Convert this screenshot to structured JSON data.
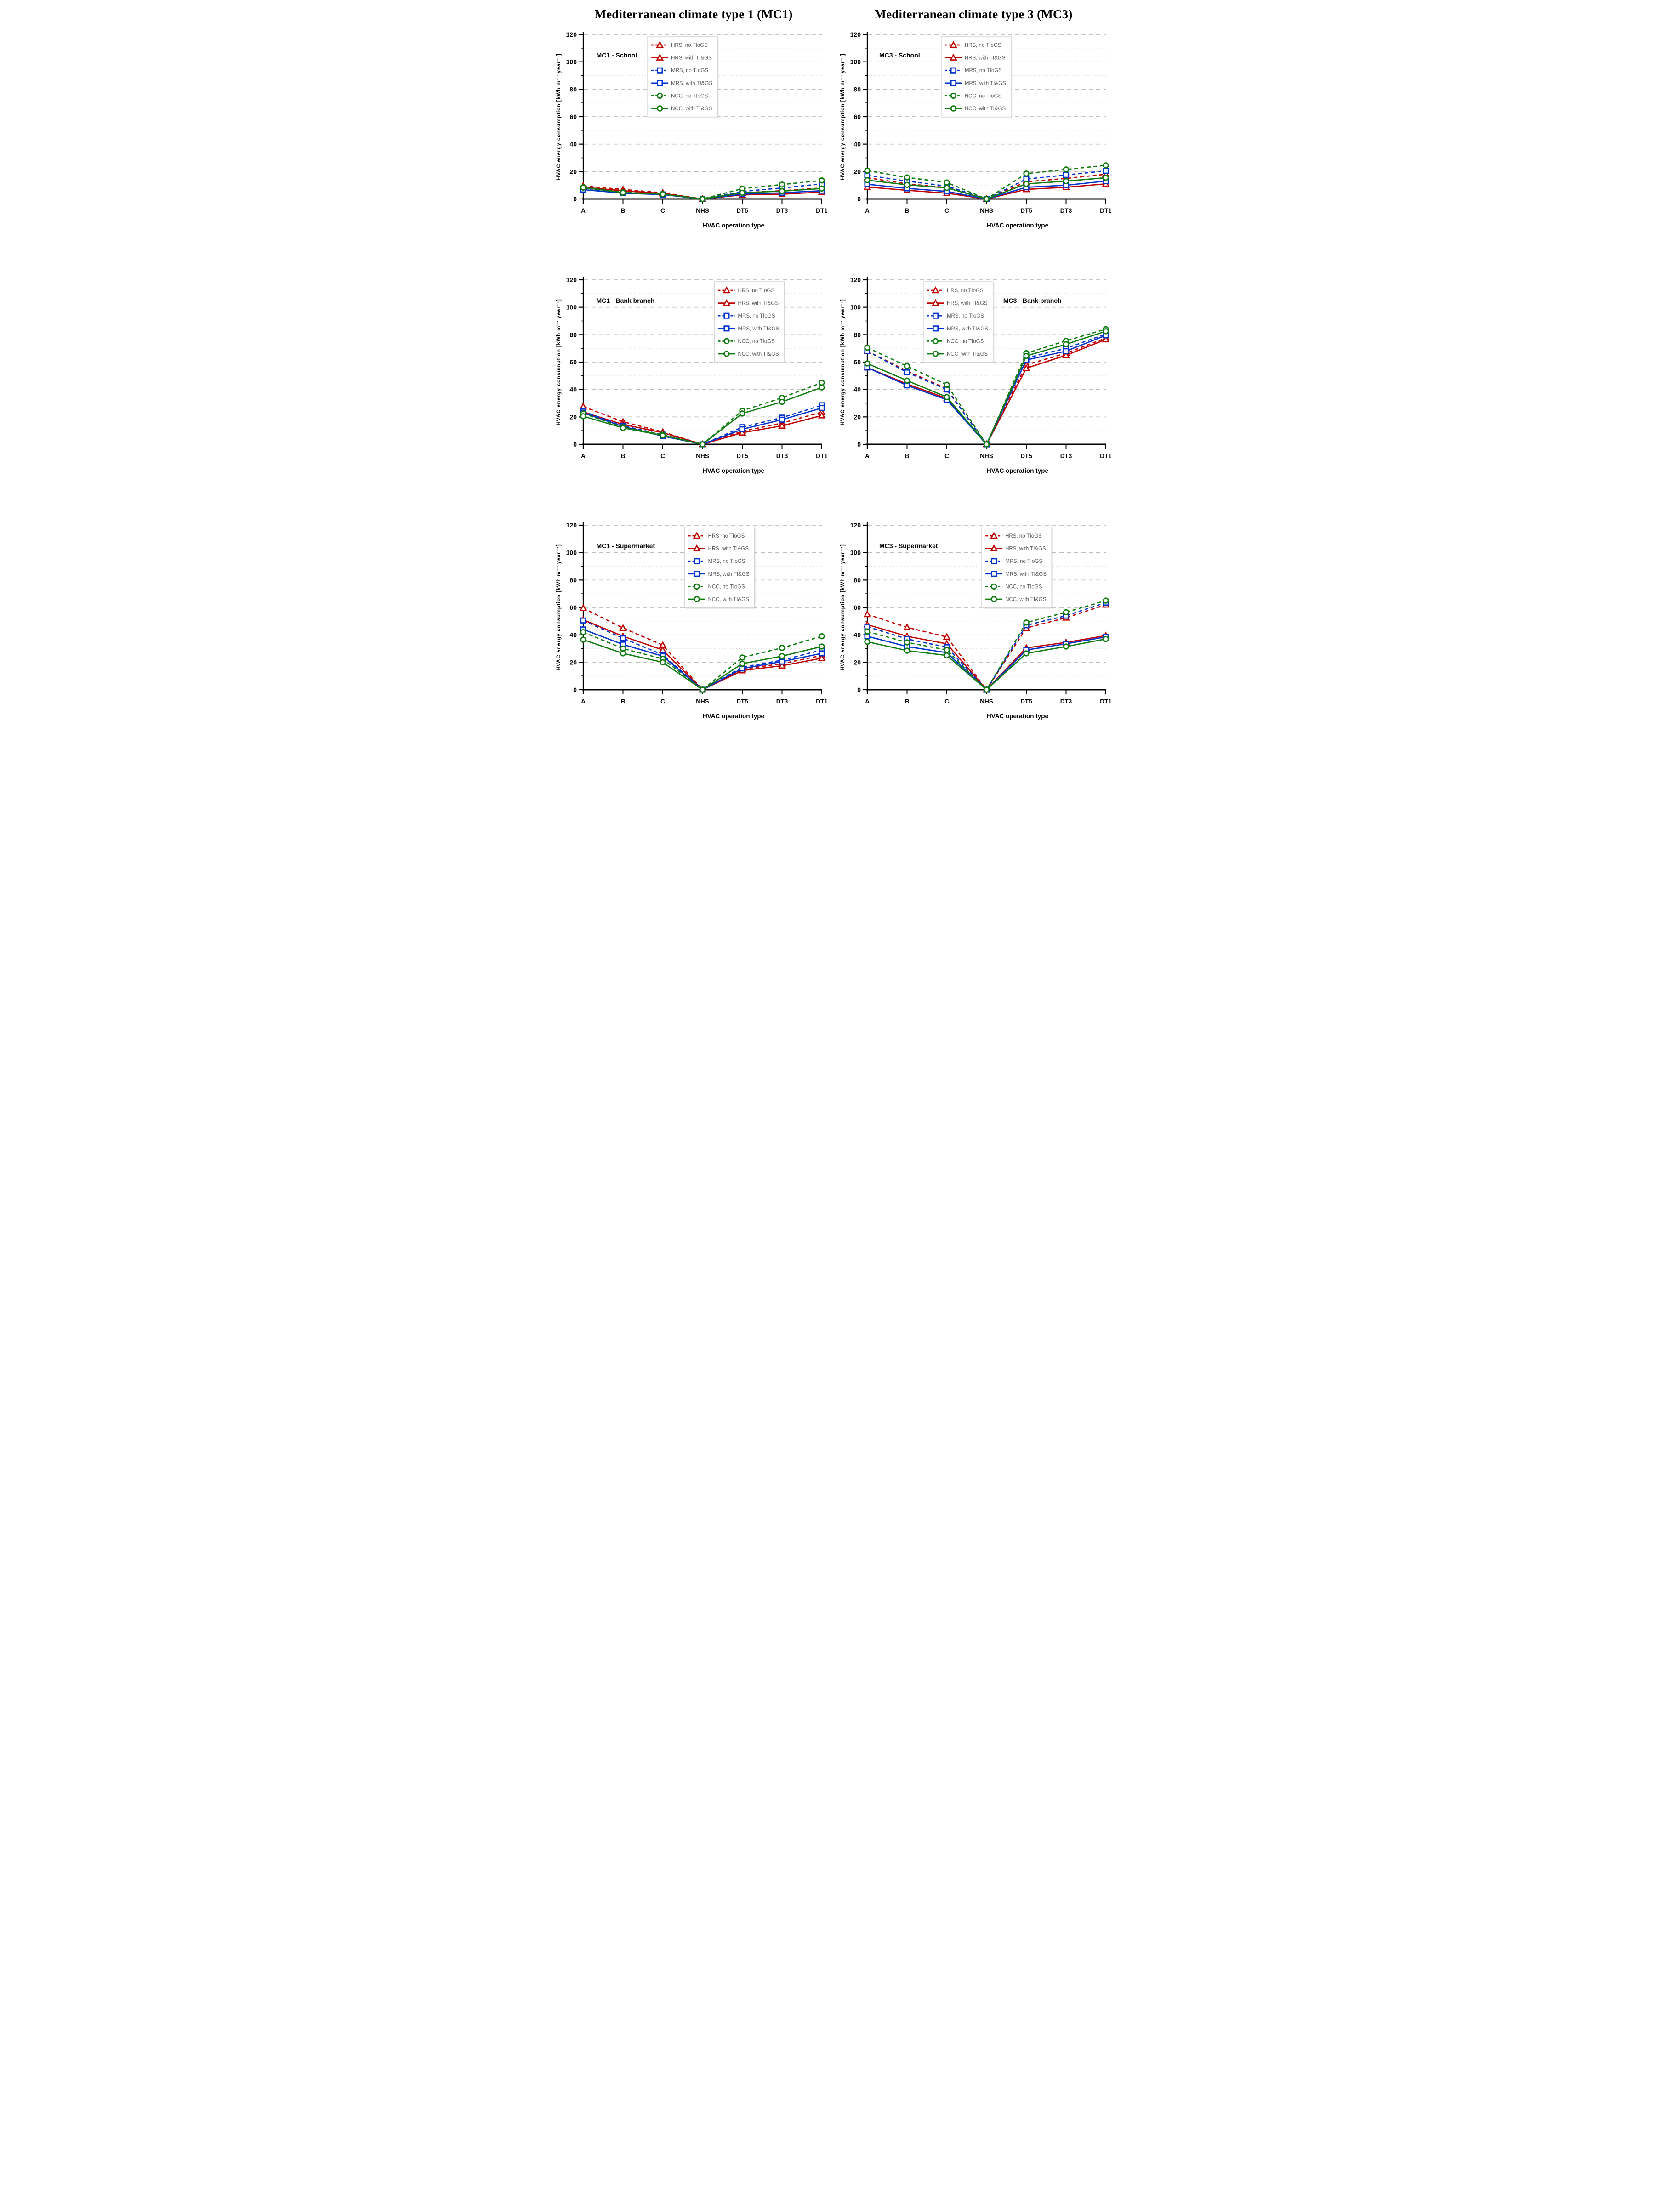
{
  "page": {
    "column_titles": [
      "Mediterranean climate type 1 (MC1)",
      "Mediterranean climate type 3 (MC3)"
    ]
  },
  "axis": {
    "x_label": "HVAC operation type",
    "y_label": "HVAC energy consumption  [kWh m⁻² year⁻¹]",
    "categories": [
      "A",
      "B",
      "C",
      "NHS",
      "DT5",
      "DT3",
      "DT1"
    ],
    "ylim": [
      0,
      120
    ],
    "ytick_step": 20,
    "grid_step": 10,
    "grid": "on"
  },
  "legend": {
    "items": [
      {
        "label": "HRS, no TIoGS",
        "color": "#C00000",
        "dash": true,
        "marker": "triangle"
      },
      {
        "label": "HRS, with TI&GS",
        "color": "#C00000",
        "dash": false,
        "marker": "triangle"
      },
      {
        "label": "MRS, no TIoGS",
        "color": "#0033CC",
        "dash": true,
        "marker": "square"
      },
      {
        "label": "MRS, with TI&GS",
        "color": "#0033CC",
        "dash": false,
        "marker": "square"
      },
      {
        "label": "NCC, no TIoGS",
        "color": "#107C10",
        "dash": true,
        "marker": "circle"
      },
      {
        "label": "NCC, with TI&GS",
        "color": "#107C10",
        "dash": false,
        "marker": "circle"
      }
    ],
    "text_color": "#595959"
  },
  "chart_data": [
    {
      "type": "line",
      "title": "MC1 - School",
      "categories": [
        "A",
        "B",
        "C",
        "NHS",
        "DT5",
        "DT3",
        "DT1"
      ],
      "xlabel": "HVAC operation type",
      "ylabel": "HVAC energy consumption  [kWh m⁻² year⁻¹]",
      "ylim": [
        0,
        120
      ],
      "layout": {
        "legend_x": 0.27,
        "title_x": 0.055,
        "title_y": 0.1
      },
      "series": [
        {
          "name": "HRS, no TIoGS",
          "values": [
            9.5,
            6.9,
            4.5,
            0,
            4.5,
            6.0,
            8.0
          ]
        },
        {
          "name": "HRS, with TI&GS",
          "values": [
            8.5,
            6.0,
            4.0,
            0,
            3.0,
            3.5,
            5.0
          ]
        },
        {
          "name": "MRS, no TIoGS",
          "values": [
            7.0,
            4.5,
            3.3,
            0,
            5.5,
            8.0,
            11.0
          ]
        },
        {
          "name": "MRS, with TI&GS",
          "values": [
            6.8,
            4.2,
            3.2,
            0,
            3.5,
            4.5,
            6.0
          ]
        },
        {
          "name": "NCC, no TIoGS",
          "values": [
            8.5,
            4.8,
            3.5,
            0,
            7.5,
            10.5,
            13.5
          ]
        },
        {
          "name": "NCC, with TI&GS",
          "values": [
            8.3,
            4.6,
            3.5,
            0,
            4.5,
            5.7,
            7.6
          ]
        }
      ]
    },
    {
      "type": "line",
      "title": "MC3 - School",
      "categories": [
        "A",
        "B",
        "C",
        "NHS",
        "DT5",
        "DT3",
        "DT1"
      ],
      "xlabel": "HVAC operation type",
      "ylabel": "HVAC energy consumption  [kWh m⁻² year⁻¹]",
      "ylim": [
        0,
        120
      ],
      "layout": {
        "legend_x": 0.31,
        "title_x": 0.05,
        "title_y": 0.1
      },
      "series": [
        {
          "name": "HRS, no TIoGS",
          "values": [
            15.5,
            11.0,
            8.3,
            0,
            12.5,
            15.0,
            18.0
          ]
        },
        {
          "name": "HRS, with TI&GS",
          "values": [
            8.7,
            6.3,
            4.2,
            0,
            7.0,
            8.5,
            11.0
          ]
        },
        {
          "name": "MRS, no TIoGS",
          "values": [
            17.2,
            13.0,
            9.4,
            0,
            14.5,
            17.5,
            20.5
          ]
        },
        {
          "name": "MRS, with TI&GS",
          "values": [
            10.7,
            7.7,
            5.5,
            0,
            8.5,
            10.0,
            13.0
          ]
        },
        {
          "name": "NCC, no TIoGS",
          "values": [
            20.7,
            15.7,
            12.0,
            0,
            18.5,
            21.5,
            24.5
          ]
        },
        {
          "name": "NCC, with TI&GS",
          "values": [
            13.7,
            10.3,
            8.1,
            0,
            11.0,
            13.0,
            15.5
          ]
        }
      ]
    },
    {
      "type": "line",
      "title": "MC1 - Bank branch",
      "categories": [
        "A",
        "B",
        "C",
        "NHS",
        "DT5",
        "DT3",
        "DT1"
      ],
      "xlabel": "HVAC operation type",
      "ylabel": "HVAC energy consumption  [kWh m⁻² year⁻¹]",
      "ylim": [
        0,
        120
      ],
      "layout": {
        "legend_x": 0.55,
        "title_x": 0.055,
        "title_y": 0.1
      },
      "series": [
        {
          "name": "HRS, no TIoGS",
          "values": [
            27.5,
            16.5,
            9.0,
            0,
            9.5,
            15.5,
            23.5
          ]
        },
        {
          "name": "HRS, with TI&GS",
          "values": [
            23.5,
            14.5,
            8.5,
            0,
            8.5,
            13.5,
            21.0
          ]
        },
        {
          "name": "MRS, no TIoGS",
          "values": [
            24.0,
            13.5,
            7.0,
            0,
            12.5,
            19.5,
            28.5
          ]
        },
        {
          "name": "MRS, with TI&GS",
          "values": [
            23.0,
            13.0,
            6.0,
            0,
            11.0,
            18.0,
            26.5
          ]
        },
        {
          "name": "NCC, no TIoGS",
          "values": [
            22.5,
            12.5,
            7.0,
            0,
            24.5,
            34.0,
            45.0
          ]
        },
        {
          "name": "NCC, with TI&GS",
          "values": [
            20.5,
            12.0,
            6.5,
            0,
            22.5,
            31.0,
            41.5
          ]
        }
      ]
    },
    {
      "type": "line",
      "title": "MC3 - Bank branch",
      "categories": [
        "A",
        "B",
        "C",
        "NHS",
        "DT5",
        "DT3",
        "DT1"
      ],
      "xlabel": "HVAC operation type",
      "ylabel": "HVAC energy consumption  [kWh m⁻² year⁻¹]",
      "ylim": [
        0,
        120
      ],
      "layout": {
        "legend_x": 0.235,
        "title_x": 0.57,
        "title_y": 0.1
      },
      "series": [
        {
          "name": "HRS, no TIoGS",
          "values": [
            68.0,
            53.5,
            40.5,
            0,
            58.0,
            66.5,
            77.5
          ]
        },
        {
          "name": "HRS, with TI&GS",
          "values": [
            56.0,
            44.0,
            33.5,
            0,
            55.5,
            65.0,
            76.5
          ]
        },
        {
          "name": "MRS, no TIoGS",
          "values": [
            68.0,
            52.5,
            40.0,
            0,
            63.0,
            70.0,
            80.5
          ]
        },
        {
          "name": "MRS, with TI&GS",
          "values": [
            56.0,
            43.0,
            32.5,
            0,
            61.5,
            68.0,
            79.5
          ]
        },
        {
          "name": "NCC, no TIoGS",
          "values": [
            70.5,
            57.0,
            43.5,
            0,
            66.5,
            75.5,
            84.0
          ]
        },
        {
          "name": "NCC, with TI&GS",
          "values": [
            59.0,
            46.5,
            34.5,
            0,
            64.5,
            73.0,
            82.5
          ]
        }
      ]
    },
    {
      "type": "line",
      "title": "MC1 - Supermarket",
      "categories": [
        "A",
        "B",
        "C",
        "NHS",
        "DT5",
        "DT3",
        "DT1"
      ],
      "xlabel": "HVAC operation type",
      "ylabel": "HVAC energy consumption  [kWh m⁻² year⁻¹]",
      "ylim": [
        0,
        120
      ],
      "layout": {
        "legend_x": 0.425,
        "title_x": 0.055,
        "title_y": 0.1
      },
      "series": [
        {
          "name": "HRS, no TIoGS",
          "values": [
            59.5,
            45.0,
            32.5,
            0,
            15.0,
            19.0,
            25.0
          ]
        },
        {
          "name": "HRS, with TI&GS",
          "values": [
            51.0,
            39.0,
            29.0,
            0,
            14.0,
            17.5,
            23.0
          ]
        },
        {
          "name": "MRS, no TIoGS",
          "values": [
            50.5,
            37.5,
            25.5,
            0,
            16.5,
            21.5,
            29.0
          ]
        },
        {
          "name": "MRS, with TI&GS",
          "values": [
            44.0,
            33.0,
            24.5,
            0,
            15.5,
            20.5,
            26.5
          ]
        },
        {
          "name": "NCC, no TIoGS",
          "values": [
            42.0,
            30.0,
            22.5,
            0,
            23.5,
            30.5,
            39.0
          ]
        },
        {
          "name": "NCC, with TI&GS",
          "values": [
            36.5,
            26.5,
            20.0,
            0,
            19.0,
            24.5,
            31.5
          ]
        }
      ]
    },
    {
      "type": "line",
      "title": "MC3 - Supermarket",
      "categories": [
        "A",
        "B",
        "C",
        "NHS",
        "DT5",
        "DT3",
        "DT1"
      ],
      "xlabel": "HVAC operation type",
      "ylabel": "HVAC energy consumption  [kWh m⁻² year⁻¹]",
      "ylim": [
        0,
        120
      ],
      "layout": {
        "legend_x": 0.48,
        "title_x": 0.05,
        "title_y": 0.1
      },
      "series": [
        {
          "name": "HRS, no TIoGS",
          "values": [
            55.0,
            45.5,
            38.5,
            0,
            45.0,
            52.5,
            62.0
          ]
        },
        {
          "name": "HRS, with TI&GS",
          "values": [
            47.5,
            39.0,
            33.5,
            0,
            30.5,
            34.5,
            39.5
          ]
        },
        {
          "name": "MRS, no TIoGS",
          "values": [
            46.0,
            37.0,
            31.0,
            0,
            47.0,
            54.0,
            63.5
          ]
        },
        {
          "name": "MRS, with TI&GS",
          "values": [
            39.0,
            31.5,
            27.0,
            0,
            29.0,
            33.5,
            38.5
          ]
        },
        {
          "name": "NCC, no TIoGS",
          "values": [
            42.5,
            34.5,
            29.0,
            0,
            49.0,
            56.5,
            65.0
          ]
        },
        {
          "name": "NCC, with TI&GS",
          "values": [
            35.0,
            28.5,
            25.0,
            0,
            26.5,
            31.5,
            37.0
          ]
        }
      ]
    }
  ]
}
